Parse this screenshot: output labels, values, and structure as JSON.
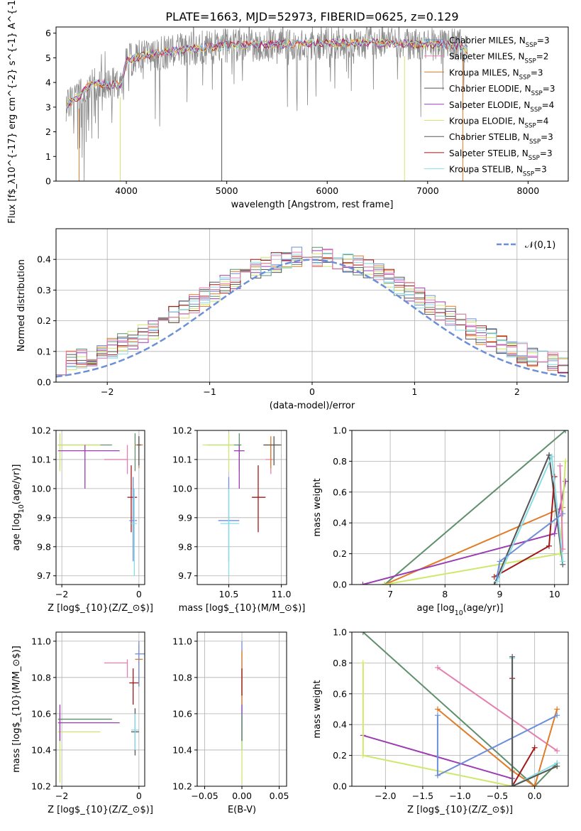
{
  "title": "PLATE=1663, MJD=52973, FIBERID=0625, z=0.129",
  "colors": {
    "blue": "#6c8fd8",
    "orange": "#e07b27",
    "green": "#5f8f6c",
    "purple": "#9b3cb3",
    "lime": "#cde86a",
    "dgray": "#555555",
    "red": "#a31818",
    "cyan": "#88dde6",
    "pink": "#e57fb0",
    "gray": "#8a8a8a",
    "grid": "#b0b0b0"
  },
  "series_names": [
    "Chabrier MILES, N$_{SSP}$=3",
    "Salpeter MILES, N$_{SSP}$=2",
    "Kroupa MILES, N$_{SSP}$=3",
    "Chabrier ELODIE, N$_{SSP}$=3",
    "Salpeter ELODIE, N$_{SSP}$=4",
    "Kroupa ELODIE, N$_{SSP}$=4",
    "Chabrier STELIB, N$_{SSP}$=3",
    "Salpeter STELIB, N$_{SSP}$=3",
    "Kroupa STELIB, N$_{SSP}$=3"
  ],
  "chart_data": [
    {
      "id": "spectrum",
      "type": "line",
      "xlabel": "wavelength [Angstrom, rest frame]",
      "ylabel": "Flux [f$_\\lambda$10$^{-17}$ erg cm$^{-2}$ s$^{-1}$ A$^{-1}$]",
      "xlim": [
        3300,
        8400
      ],
      "ylim": [
        0,
        6.25
      ],
      "xticks": [
        4000,
        5000,
        6000,
        7000,
        8000
      ],
      "yticks": [
        0,
        1,
        2,
        3,
        4,
        5,
        6
      ],
      "grid": false,
      "legend": "upper-right",
      "continuum": {
        "x": [
          3400,
          3550,
          3650,
          3800,
          3950,
          4000,
          4200,
          4500,
          5000,
          5500,
          6000,
          6500,
          7000,
          7300,
          7400
        ],
        "y": [
          3.1,
          3.5,
          4.0,
          3.9,
          3.9,
          4.9,
          5.1,
          5.3,
          5.5,
          5.55,
          5.6,
          5.6,
          5.55,
          5.5,
          5.3
        ]
      },
      "observed_range": [
        3400,
        7400
      ]
    },
    {
      "id": "residuals",
      "type": "line",
      "xlabel": "(data-model)/error",
      "ylabel": "Normed distribution",
      "xlim": [
        -2.5,
        2.5
      ],
      "ylim": [
        0,
        0.5
      ],
      "xticks": [
        -2,
        -1,
        0,
        1,
        2
      ],
      "yticks": [
        0.0,
        0.1,
        0.2,
        0.3,
        0.4
      ],
      "grid": true,
      "legend": "upper-right",
      "gaussian_label": "$\\mathcal{N}(0,1)$"
    },
    {
      "id": "age_vs_Z",
      "type": "scatter",
      "xlabel": "Z [log$_{10}$(Z/Z$_\\odot$)]",
      "ylabel": "age  [log$_{10}$(age/yr)]",
      "xlim": [
        -2.15,
        0.15
      ],
      "ylim": [
        9.67,
        10.2
      ],
      "xticks": [
        -2,
        0
      ],
      "yticks": [
        9.7,
        9.8,
        9.9,
        10.0,
        10.1,
        10.2
      ],
      "grid": true,
      "points": [
        {
          "c": "green",
          "x": -0.1,
          "y": 10.15,
          "xe": [
            -2.1,
            -0.7
          ],
          "ye": [
            10.06,
            10.19
          ]
        },
        {
          "c": "lime",
          "x": -2.05,
          "y": 10.15,
          "xe": [
            -2.1,
            -1.0
          ],
          "ye": [
            10.06,
            10.19
          ]
        },
        {
          "c": "purple",
          "x": -1.4,
          "y": 10.13,
          "xe": [
            -2.1,
            -0.5
          ],
          "ye": [
            10.0,
            10.15
          ]
        },
        {
          "c": "pink",
          "x": -0.3,
          "y": 10.1,
          "xe": [
            -0.9,
            -0.3
          ],
          "ye": [
            10.05,
            10.15
          ]
        },
        {
          "c": "orange",
          "x": 0.0,
          "y": 10.15,
          "xe": [
            -0.1,
            0.1
          ],
          "ye": [
            10.07,
            10.18
          ]
        },
        {
          "c": "dgray",
          "x": 0.0,
          "y": 10.15,
          "xe": [
            -0.05,
            0.05
          ],
          "ye": [
            10.08,
            10.18
          ]
        },
        {
          "c": "red",
          "x": -0.2,
          "y": 9.97,
          "xe": [
            -0.3,
            -0.05
          ],
          "ye": [
            9.85,
            10.08
          ]
        },
        {
          "c": "blue",
          "x": -0.15,
          "y": 9.89,
          "xe": [
            -0.25,
            -0.05
          ],
          "ye": [
            9.75,
            10.04
          ]
        },
        {
          "c": "cyan",
          "x": -0.12,
          "y": 9.88,
          "xe": [
            -0.2,
            -0.05
          ],
          "ye": [
            9.7,
            10.0
          ]
        }
      ]
    },
    {
      "id": "age_vs_mass",
      "type": "scatter",
      "xlabel": "mass [log$_{10}$(M/M$_\\odot$)]",
      "ylabel": "",
      "xlim": [
        10.2,
        11.05
      ],
      "ylim": [
        9.67,
        10.2
      ],
      "xticks": [
        10.5,
        11.0
      ],
      "yticks": [
        9.7,
        9.8,
        9.9,
        10.0,
        10.1,
        10.2
      ],
      "grid": true,
      "points": [
        {
          "c": "green",
          "x": 10.6,
          "y": 10.15,
          "xe": [
            10.3,
            10.62
          ],
          "ye": [
            10.06,
            10.19
          ]
        },
        {
          "c": "lime",
          "x": 10.5,
          "y": 10.15,
          "xe": [
            10.25,
            10.55
          ],
          "ye": [
            10.06,
            10.19
          ]
        },
        {
          "c": "purple",
          "x": 10.6,
          "y": 10.13,
          "xe": [
            10.55,
            10.65
          ],
          "ye": [
            10.0,
            10.15
          ]
        },
        {
          "c": "pink",
          "x": 10.9,
          "y": 10.1,
          "xe": [
            10.85,
            10.92
          ],
          "ye": [
            10.05,
            10.15
          ]
        },
        {
          "c": "orange",
          "x": 10.9,
          "y": 10.15,
          "xe": [
            10.83,
            10.98
          ],
          "ye": [
            10.07,
            10.18
          ]
        },
        {
          "c": "dgray",
          "x": 10.93,
          "y": 10.15,
          "xe": [
            10.83,
            11.0
          ],
          "ye": [
            10.08,
            10.18
          ]
        },
        {
          "c": "red",
          "x": 10.78,
          "y": 9.97,
          "xe": [
            10.72,
            10.85
          ],
          "ye": [
            9.85,
            10.08
          ]
        },
        {
          "c": "blue",
          "x": 10.5,
          "y": 9.89,
          "xe": [
            10.4,
            10.6
          ],
          "ye": [
            9.75,
            10.04
          ]
        },
        {
          "c": "cyan",
          "x": 10.5,
          "y": 9.88,
          "xe": [
            10.42,
            10.6
          ],
          "ye": [
            9.7,
            10.0
          ]
        }
      ]
    },
    {
      "id": "weight_vs_age",
      "type": "line",
      "xlabel": "age  [log$_{10}$(age/yr)]",
      "ylabel": "mass weight",
      "xlim": [
        6.3,
        10.25
      ],
      "ylim": [
        0,
        1.0
      ],
      "xticks": [
        7,
        8,
        9,
        10
      ],
      "yticks": [
        0.0,
        0.2,
        0.4,
        0.6,
        0.8,
        1.0
      ],
      "grid": true,
      "series": [
        {
          "c": "green",
          "x": [
            6.9,
            10.2
          ],
          "y": [
            0.0,
            1.0
          ]
        },
        {
          "c": "orange",
          "x": [
            6.9,
            10.15
          ],
          "y": [
            0.0,
            0.5
          ]
        },
        {
          "c": "purple",
          "x": [
            6.5,
            10.0,
            10.2
          ],
          "y": [
            0.0,
            0.33,
            0.67
          ]
        },
        {
          "c": "lime",
          "x": [
            6.9,
            10.1,
            10.2
          ],
          "y": [
            0.0,
            0.2,
            0.8
          ]
        },
        {
          "c": "dgray",
          "x": [
            8.9,
            9.9,
            10.15
          ],
          "y": [
            0.0,
            0.84,
            0.13
          ]
        },
        {
          "c": "red",
          "x": [
            8.9,
            9.9,
            10.0
          ],
          "y": [
            0.05,
            0.25,
            0.7
          ]
        },
        {
          "c": "cyan",
          "x": [
            8.95,
            9.95,
            10.15
          ],
          "y": [
            0.02,
            0.83,
            0.15
          ]
        },
        {
          "c": "blue",
          "x": [
            8.95,
            9.0,
            10.15
          ],
          "y": [
            0.05,
            0.15,
            0.46
          ]
        },
        {
          "c": "pink",
          "x": [
            10.1,
            10.15
          ],
          "y": [
            0.77,
            0.23
          ]
        }
      ]
    },
    {
      "id": "mass_vs_Z",
      "type": "scatter",
      "xlabel": "Z [log$_{10}$(Z/Z$_\\odot$)]",
      "ylabel": "mass [log$_{10}$(M/M$_\\odot$)]",
      "xlim": [
        -2.15,
        0.15
      ],
      "ylim": [
        10.2,
        11.05
      ],
      "xticks": [
        -2,
        0
      ],
      "yticks": [
        10.2,
        10.4,
        10.6,
        10.8,
        11.0
      ],
      "grid": true,
      "points": [
        {
          "c": "green",
          "x": -2.05,
          "y": 10.57,
          "xe": [
            -2.1,
            -0.7
          ],
          "ye": [
            10.45,
            10.6
          ]
        },
        {
          "c": "lime",
          "x": -2.05,
          "y": 10.5,
          "xe": [
            -2.1,
            -1.0
          ],
          "ye": [
            10.22,
            10.55
          ]
        },
        {
          "c": "purple",
          "x": -2.05,
          "y": 10.55,
          "xe": [
            -2.1,
            -0.5
          ],
          "ye": [
            10.45,
            10.65
          ]
        },
        {
          "c": "pink",
          "x": -0.3,
          "y": 10.88,
          "xe": [
            -0.9,
            -0.3
          ],
          "ye": [
            10.8,
            10.9
          ]
        },
        {
          "c": "orange",
          "x": 0.0,
          "y": 10.9,
          "xe": [
            -0.1,
            0.1
          ],
          "ye": [
            10.75,
            10.98
          ]
        },
        {
          "c": "dgray",
          "x": -0.1,
          "y": 10.5,
          "xe": [
            -0.2,
            0.0
          ],
          "ye": [
            10.37,
            10.63
          ]
        },
        {
          "c": "red",
          "x": -0.15,
          "y": 10.77,
          "xe": [
            -0.25,
            0.0
          ],
          "ye": [
            10.65,
            10.85
          ]
        },
        {
          "c": "blue",
          "x": 0.0,
          "y": 10.93,
          "xe": [
            -0.1,
            0.15
          ],
          "ye": [
            10.75,
            11.0
          ]
        },
        {
          "c": "cyan",
          "x": -0.1,
          "y": 10.51,
          "xe": [
            -0.2,
            0.0
          ],
          "ye": [
            10.4,
            10.6
          ]
        }
      ]
    },
    {
      "id": "mass_vs_EBV",
      "type": "scatter",
      "xlabel": "E(B-V)",
      "ylabel": "",
      "xlim": [
        -0.06,
        0.06
      ],
      "ylim": [
        10.2,
        11.05
      ],
      "xticks": [
        -0.05,
        0.0,
        0.05
      ],
      "yticks": [
        10.2,
        10.4,
        10.6,
        10.8,
        11.0
      ],
      "grid": true,
      "ranges": [
        {
          "c": "blue",
          "y0": 10.4,
          "y1": 11.0
        },
        {
          "c": "orange",
          "y0": 10.65,
          "y1": 10.95
        },
        {
          "c": "red",
          "y0": 10.7,
          "y1": 10.85
        },
        {
          "c": "cyan",
          "y0": 10.4,
          "y1": 10.65
        },
        {
          "c": "lime",
          "y0": 10.22,
          "y1": 10.55
        },
        {
          "c": "purple",
          "y0": 10.45,
          "y1": 10.65
        },
        {
          "c": "green",
          "y0": 10.45,
          "y1": 10.6
        }
      ]
    },
    {
      "id": "weight_vs_Z",
      "type": "line",
      "xlabel": "Z [log$_{10}$(Z/Z$_\\odot$)]",
      "ylabel": "mass weight",
      "xlim": [
        -2.45,
        0.45
      ],
      "ylim": [
        0,
        1.0
      ],
      "xticks": [
        -2.0,
        -1.5,
        -1.0,
        -0.5,
        0.0
      ],
      "yticks": [
        0.0,
        0.2,
        0.4,
        0.6,
        0.8,
        1.0
      ],
      "grid": true,
      "series": [
        {
          "c": "green",
          "x": [
            -2.3,
            0.0,
            0.3
          ],
          "y": [
            1.0,
            0.0,
            0.15
          ]
        },
        {
          "c": "pink",
          "x": [
            -1.3,
            0.3
          ],
          "y": [
            0.77,
            0.23
          ]
        },
        {
          "c": "orange",
          "x": [
            -1.3,
            -0.3,
            0.0,
            0.3
          ],
          "y": [
            0.5,
            0.1,
            0.0,
            0.5
          ]
        },
        {
          "c": "purple",
          "x": [
            -2.3,
            -0.3
          ],
          "y": [
            0.33,
            0.05
          ]
        },
        {
          "c": "lime",
          "x": [
            -2.3,
            -2.3,
            -0.3,
            0.3
          ],
          "y": [
            0.8,
            0.2,
            0.0,
            0.13
          ]
        },
        {
          "c": "blue",
          "x": [
            -1.3,
            -1.3,
            0.3
          ],
          "y": [
            0.46,
            0.07,
            0.46
          ]
        },
        {
          "c": "red",
          "x": [
            -0.3,
            -0.3,
            0.0
          ],
          "y": [
            0.7,
            0.0,
            0.25
          ]
        },
        {
          "c": "cyan",
          "x": [
            -0.3,
            -0.3,
            0.3
          ],
          "y": [
            0.83,
            0.0,
            0.15
          ]
        },
        {
          "c": "dgray",
          "x": [
            -0.3,
            -0.3,
            0.3
          ],
          "y": [
            0.84,
            0.0,
            0.13
          ]
        }
      ]
    }
  ]
}
